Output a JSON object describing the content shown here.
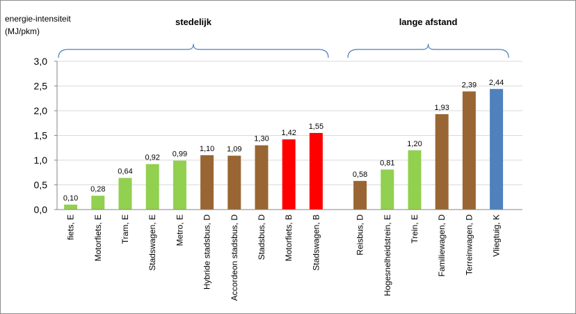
{
  "chart_data": {
    "type": "bar",
    "ylabel_line1": "energie-intensiteit",
    "ylabel_line2": "(MJ/pkm)",
    "ylim": [
      0,
      3.0
    ],
    "yticks": [
      "0,0",
      "0,5",
      "1,0",
      "1,5",
      "2,0",
      "2,5",
      "3,0"
    ],
    "grid": true,
    "groups": [
      {
        "title": "stedelijk",
        "bars": [
          {
            "label": "fiets, E",
            "value": 0.1,
            "display": "0,10",
            "color": "#92d050"
          },
          {
            "label": "Motorfiets, E",
            "value": 0.28,
            "display": "0,28",
            "color": "#92d050"
          },
          {
            "label": "Tram, E",
            "value": 0.64,
            "display": "0,64",
            "color": "#92d050"
          },
          {
            "label": "Stadswagen, E",
            "value": 0.92,
            "display": "0,92",
            "color": "#92d050"
          },
          {
            "label": "Metro, E",
            "value": 0.99,
            "display": "0,99",
            "color": "#92d050"
          },
          {
            "label": "Hybride stadsbus, D",
            "value": 1.1,
            "display": "1,10",
            "color": "#996633"
          },
          {
            "label": "Accordeon stadsbus, D",
            "value": 1.09,
            "display": "1,09",
            "color": "#996633"
          },
          {
            "label": "Stadsbus, D",
            "value": 1.3,
            "display": "1,30",
            "color": "#996633"
          },
          {
            "label": "Motorfiets, B",
            "value": 1.42,
            "display": "1,42",
            "color": "#ff0000"
          },
          {
            "label": "Stadswagen, B",
            "value": 1.55,
            "display": "1,55",
            "color": "#ff0000"
          }
        ]
      },
      {
        "title": "lange afstand",
        "bars": [
          {
            "label": "Reisbus, D",
            "value": 0.58,
            "display": "0,58",
            "color": "#996633"
          },
          {
            "label": "Hogesnelheidstrein, E",
            "value": 0.81,
            "display": "0,81",
            "color": "#92d050"
          },
          {
            "label": "Trein, E",
            "value": 1.2,
            "display": "1,20",
            "color": "#92d050"
          },
          {
            "label": "Familiewagen, D",
            "value": 1.93,
            "display": "1,93",
            "color": "#996633"
          },
          {
            "label": "Terreinwagen, D",
            "value": 2.39,
            "display": "2,39",
            "color": "#996633"
          },
          {
            "label": "Vliegtuig, K",
            "value": 2.44,
            "display": "2,44",
            "color": "#4f81bd"
          }
        ]
      }
    ]
  }
}
